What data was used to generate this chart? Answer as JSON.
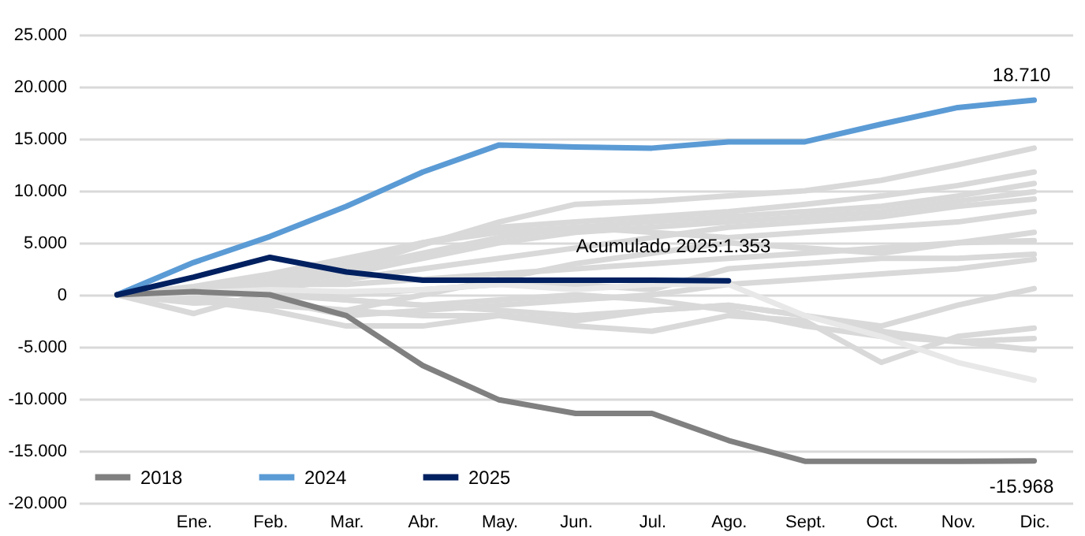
{
  "chart_data": {
    "type": "line",
    "categories": [
      null,
      "Ene.",
      "Feb.",
      "Mar.",
      "Abr.",
      "May.",
      "Jun.",
      "Jul.",
      "Ago.",
      "Sept.",
      "Oct.",
      "Nov.",
      "Dic."
    ],
    "ylim": [
      -20000,
      25000
    ],
    "yticks": [
      {
        "value": -20000,
        "label": "-20.000"
      },
      {
        "value": -15000,
        "label": "-15.000"
      },
      {
        "value": -10000,
        "label": "-10.000"
      },
      {
        "value": -5000,
        "label": "-5.000"
      },
      {
        "value": 0,
        "label": "0"
      },
      {
        "value": 5000,
        "label": "5.000"
      },
      {
        "value": 10000,
        "label": "10.000"
      },
      {
        "value": 15000,
        "label": "15.000"
      },
      {
        "value": 20000,
        "label": "20.000"
      },
      {
        "value": 25000,
        "label": "25.000"
      }
    ],
    "grid": "y",
    "legend": "bottom left",
    "marker": "none",
    "line_style": "solid",
    "annotations": [
      {
        "text": "Acumulado 2025:1.353",
        "x": "Ago.",
        "y": 1353
      }
    ],
    "series": [
      {
        "color": "#d9d9d9",
        "values": [
          0,
          -1800,
          300,
          2500,
          4800,
          7000,
          8700,
          9000,
          9500,
          10000,
          11000,
          12500,
          14100
        ]
      },
      {
        "color": "#d9d9d9",
        "values": [
          0,
          500,
          1500,
          3000,
          5000,
          6500,
          7000,
          7500,
          8000,
          8700,
          9500,
          10500,
          11800
        ]
      },
      {
        "color": "#d9d9d9",
        "values": [
          0,
          200,
          1200,
          2500,
          4000,
          5500,
          6500,
          7000,
          7500,
          8000,
          8500,
          9500,
          10700
        ]
      },
      {
        "color": "#d9d9d9",
        "values": [
          0,
          300,
          1000,
          2000,
          3500,
          5000,
          6000,
          6500,
          7000,
          7500,
          8000,
          9000,
          9900
        ]
      },
      {
        "color": "#d9d9d9",
        "values": [
          0,
          -300,
          500,
          1500,
          2500,
          3500,
          4500,
          5500,
          6500,
          7000,
          7500,
          8500,
          9200
        ]
      },
      {
        "color": "#d9d9d9",
        "values": [
          0,
          800,
          2000,
          3500,
          5000,
          6000,
          6500,
          6000,
          5500,
          6000,
          6500,
          7000,
          8000
        ]
      },
      {
        "color": "#d9d9d9",
        "values": [
          0,
          -500,
          -1000,
          -1500,
          0,
          1500,
          3000,
          4000,
          5000,
          4500,
          4000,
          5000,
          6000
        ]
      },
      {
        "color": "#d9d9d9",
        "values": [
          0,
          400,
          1000,
          1000,
          1500,
          2000,
          2500,
          3000,
          3500,
          4000,
          4500,
          5000,
          5200
        ]
      },
      {
        "color": "#d9d9d9",
        "values": [
          0,
          -200,
          500,
          0,
          500,
          1000,
          1000,
          500,
          2500,
          3000,
          3500,
          3500,
          3900
        ]
      },
      {
        "color": "#d9d9d9",
        "values": [
          0,
          -800,
          -500,
          -2000,
          -1500,
          -1000,
          -500,
          0,
          1000,
          1500,
          2000,
          2500,
          3400
        ]
      },
      {
        "color": "#d9d9d9",
        "values": [
          0,
          100,
          300,
          -500,
          -1000,
          -1500,
          -2000,
          -1500,
          -1000,
          -2000,
          -3000,
          -1000,
          600
        ]
      },
      {
        "color": "#d9d9d9",
        "values": [
          0,
          -500,
          -1500,
          -3000,
          -3000,
          -2000,
          -3000,
          -3500,
          -2000,
          -2500,
          -6500,
          -4000,
          -3200
        ]
      },
      {
        "color": "#d9d9d9",
        "values": [
          0,
          300,
          0,
          -500,
          -1000,
          -500,
          0,
          -500,
          -1500,
          -3000,
          -4000,
          -4500,
          -4200
        ]
      },
      {
        "color": "#d9d9d9",
        "values": [
          0,
          -300,
          -800,
          -1500,
          -2000,
          -2000,
          -2500,
          -1500,
          -1000,
          -2000,
          -3500,
          -4500,
          -5300
        ]
      },
      {
        "color": "#e8e8e8",
        "values": [
          0,
          200,
          500,
          300,
          500,
          1000,
          500,
          1000,
          1000,
          -2000,
          -4000,
          -6500,
          -8200
        ]
      },
      {
        "name": "2018",
        "color": "#808080",
        "values": [
          0,
          300,
          0,
          -2000,
          -6800,
          -10100,
          -11400,
          -11400,
          -14000,
          -16000,
          -16000,
          -16000,
          -15968
        ],
        "value_labels": [
          null,
          null,
          null,
          null,
          null,
          null,
          null,
          null,
          null,
          null,
          null,
          null,
          "-15.968"
        ]
      },
      {
        "name": "2024",
        "color": "#5b9bd5",
        "values": [
          0,
          3100,
          5600,
          8500,
          11800,
          14400,
          14200,
          14100,
          14700,
          14700,
          16400,
          18000,
          18710
        ],
        "value_labels": [
          null,
          null,
          null,
          null,
          null,
          null,
          null,
          null,
          null,
          null,
          null,
          null,
          "18.710"
        ]
      },
      {
        "name": "2025",
        "color": "#002060",
        "values": [
          0,
          1700,
          3600,
          2200,
          1400,
          1400,
          1400,
          1400,
          1353,
          null,
          null,
          null,
          null
        ]
      }
    ]
  }
}
